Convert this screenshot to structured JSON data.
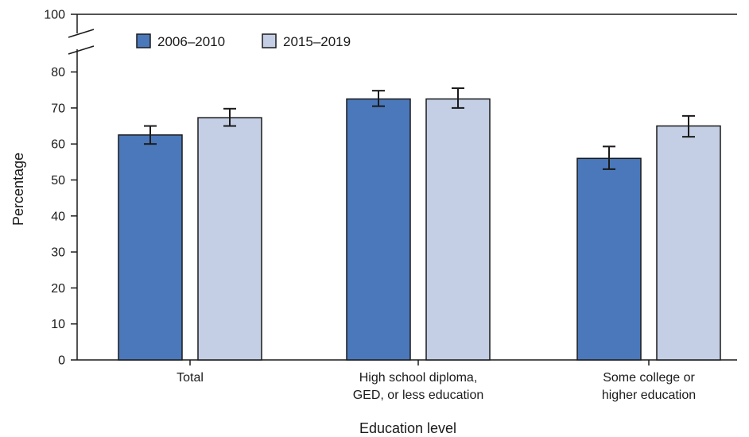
{
  "chart_data": {
    "type": "bar",
    "categories": [
      [
        "Total"
      ],
      [
        "High school diploma,",
        "GED, or less education"
      ],
      [
        "Some college or",
        "higher education"
      ]
    ],
    "series": [
      {
        "name": "2006–2010",
        "color": "#4a78bb",
        "values": [
          62.5,
          72.5,
          56
        ],
        "ci_low": [
          60,
          70.5,
          53
        ],
        "ci_high": [
          65,
          74.8,
          59.3
        ]
      },
      {
        "name": "2015–2019",
        "color": "#c4cfe6",
        "values": [
          67.3,
          72.5,
          65
        ],
        "ci_low": [
          65,
          70,
          62
        ],
        "ci_high": [
          69.8,
          75.5,
          67.8
        ]
      }
    ],
    "xlabel": "Education level",
    "ylabel": "Percentage",
    "yticks": [
      0,
      10,
      20,
      30,
      40,
      50,
      60,
      70,
      80,
      100
    ],
    "ylim": [
      0,
      100
    ],
    "axis_break": "between 80 and 100",
    "legend_position": "top-left",
    "grid": false,
    "error_bars": true
  }
}
